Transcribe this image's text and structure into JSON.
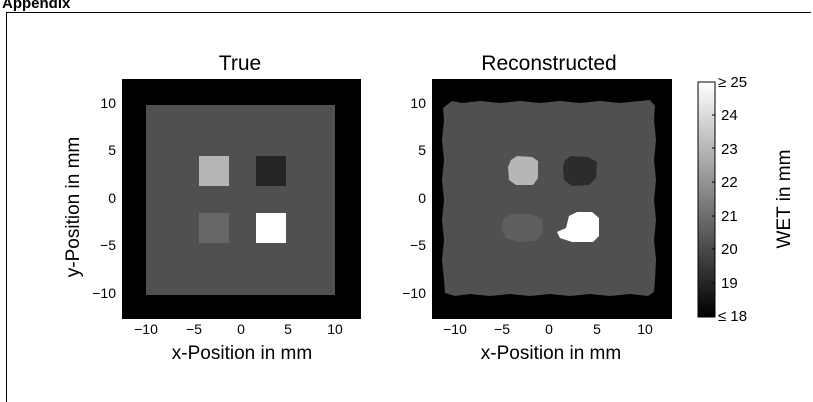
{
  "section_heading": "Appendix",
  "panels": [
    {
      "title": "True",
      "xlabel": "x-Position in mm",
      "ylabel": "y-Position in mm",
      "squares": [
        {
          "name": "upper-left",
          "value": 23.0
        },
        {
          "name": "upper-right",
          "value": 19.0
        },
        {
          "name": "lower-left",
          "value": 20.8
        },
        {
          "name": "lower-right",
          "value": 25.0
        }
      ],
      "background_value": 20.2,
      "outside_value": 18.0
    },
    {
      "title": "Reconstructed",
      "xlabel": "x-Position in mm",
      "squares": [
        {
          "name": "upper-left",
          "value": 23.0
        },
        {
          "name": "upper-right",
          "value": 19.2
        },
        {
          "name": "lower-left",
          "value": 20.6
        },
        {
          "name": "lower-right",
          "value": 25.0
        }
      ],
      "background_value": 20.2,
      "outside_value": 18.0
    }
  ],
  "x_ticks": [
    "−10",
    "−5",
    "0",
    "5",
    "10"
  ],
  "y_ticks": [
    "10",
    "5",
    "0",
    "−5",
    "−10"
  ],
  "colorbar": {
    "label": "WET in mm",
    "min_label": "≤ 18",
    "max_label": "≥ 25",
    "ticks": [
      "24",
      "23",
      "22",
      "21",
      "20",
      "19"
    ],
    "range": [
      18,
      25
    ]
  }
}
